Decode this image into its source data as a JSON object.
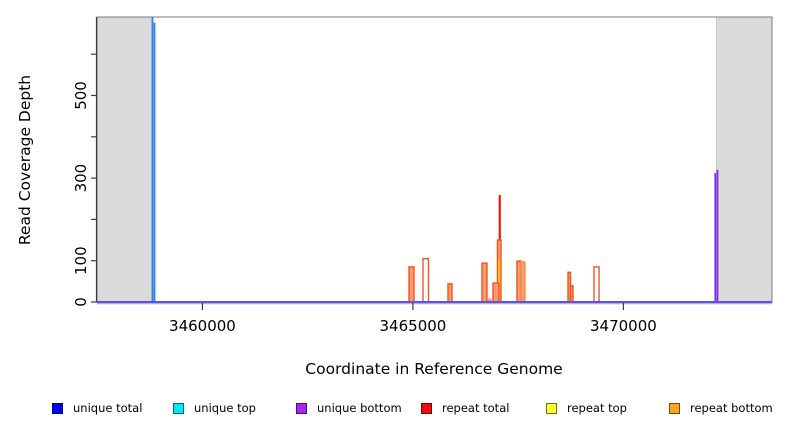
{
  "chart_data": {
    "type": "line",
    "title": "",
    "xlabel": "Coordinate in Reference Genome",
    "ylabel": "Read Coverage Depth",
    "xlim": [
      3457495,
      3473530
    ],
    "ylim": [
      0,
      690
    ],
    "grid": false,
    "x_ticks": [
      {
        "value": 3460000,
        "label": "3460000"
      },
      {
        "value": 3465000,
        "label": "3465000"
      },
      {
        "value": 3470000,
        "label": "3470000"
      }
    ],
    "y_ticks": [
      {
        "value": 0,
        "label": "0"
      },
      {
        "value": 100,
        "label": "100"
      },
      {
        "value": 200,
        "label": ""
      },
      {
        "value": 300,
        "label": "300"
      },
      {
        "value": 400,
        "label": ""
      },
      {
        "value": 500,
        "label": "500"
      },
      {
        "value": 600,
        "label": ""
      }
    ],
    "masked_regions": [
      {
        "x1": 3457495,
        "x2": 3458800
      },
      {
        "x1": 3472209,
        "x2": 3473530
      }
    ],
    "baseline_depth": 0,
    "colors": {
      "mask": "#DADADA",
      "mask_border": "#C6C6C6",
      "frame": "#8F8F8F",
      "axis": "#3C3C3C",
      "baseline": "#5A55DE",
      "baseline_light": "#AB9DF0",
      "blue": "#2F7FE9",
      "purple": "#7F2BE9",
      "red": "#ED1B0A",
      "yellow": "#FFC917",
      "orange": "#F2541D",
      "orange_light": "#F98F3E",
      "salmon": "#F79B72",
      "white": "#FFFFFF"
    },
    "features": [
      {
        "kind": "line",
        "series": "repeat total",
        "x": 3467063,
        "depth": 259,
        "color": "red",
        "w": 2.2
      },
      {
        "kind": "bar",
        "series": "repeat bottom",
        "x1": 3467008,
        "x2": 3467092,
        "depth": 150,
        "stroke": "orange",
        "fill": "salmon"
      },
      {
        "kind": "line",
        "series": "repeat top",
        "x": 3467049,
        "depth": 102,
        "color": "yellow",
        "w": 2.0
      },
      {
        "kind": "line",
        "series": "repeat top",
        "x": 3467531,
        "depth": 101,
        "color": "yellow",
        "w": 2.0
      },
      {
        "kind": "bar",
        "series": "repeat bottom",
        "x1": 3464907,
        "x2": 3465026,
        "depth": 85,
        "stroke": "orange",
        "fill": "salmon"
      },
      {
        "kind": "bar",
        "series": "repeat bottom",
        "x1": 3465239,
        "x2": 3465370,
        "depth": 105,
        "stroke": "orange",
        "fill": "white"
      },
      {
        "kind": "bar",
        "series": "repeat bottom",
        "x1": 3465833,
        "x2": 3465928,
        "depth": 44,
        "stroke": "orange",
        "fill": "salmon"
      },
      {
        "kind": "bar",
        "series": "repeat bottom",
        "x1": 3466640,
        "x2": 3466759,
        "depth": 94,
        "stroke": "orange",
        "fill": "salmon"
      },
      {
        "kind": "bar",
        "series": "repeat bottom",
        "x1": 3466795,
        "x2": 3466854,
        "depth": 7,
        "stroke": "salmon",
        "fill": "salmon"
      },
      {
        "kind": "bar",
        "series": "repeat bottom",
        "x1": 3466902,
        "x2": 3467044,
        "depth": 46,
        "stroke": "orange",
        "fill": "salmon"
      },
      {
        "kind": "bar",
        "series": "repeat bottom",
        "x1": 3467472,
        "x2": 3467567,
        "depth": 99,
        "stroke": "orange",
        "fill": "salmon"
      },
      {
        "kind": "bar",
        "series": "repeat bottom",
        "x1": 3467567,
        "x2": 3467662,
        "depth": 97,
        "stroke": "orange_light",
        "fill": "salmon"
      },
      {
        "kind": "bar",
        "series": "repeat bottom",
        "x1": 3468684,
        "x2": 3468744,
        "depth": 72,
        "stroke": "orange",
        "fill": "salmon"
      },
      {
        "kind": "bar",
        "series": "repeat bottom",
        "x1": 3468744,
        "x2": 3468803,
        "depth": 39,
        "stroke": "orange",
        "fill": "salmon"
      },
      {
        "kind": "bar",
        "series": "repeat bottom",
        "x1": 3469302,
        "x2": 3469421,
        "depth": 85,
        "stroke": "orange",
        "fill": "white"
      },
      {
        "kind": "line",
        "series": "unique total",
        "x": 3458813,
        "depth": 690,
        "color": "blue",
        "w": 1.8
      },
      {
        "kind": "line",
        "series": "unique total",
        "x": 3458861,
        "depth": 676,
        "color": "blue",
        "w": 1.8
      },
      {
        "kind": "line",
        "series": "unique bottom",
        "x": 3472183,
        "depth": 312,
        "color": "purple",
        "w": 1.8
      },
      {
        "kind": "line",
        "series": "unique bottom",
        "x": 3472235,
        "depth": 320,
        "color": "purple",
        "w": 1.8
      }
    ]
  },
  "legend": {
    "items": [
      {
        "label": "unique total",
        "color": "#0000F0"
      },
      {
        "label": "unique top",
        "color": "#00E9F2"
      },
      {
        "label": "unique bottom",
        "color": "#A428F0"
      },
      {
        "label": "repeat total",
        "color": "#F00C0C"
      },
      {
        "label": "repeat top",
        "color": "#FCFC30"
      },
      {
        "label": "repeat bottom",
        "color": "#FFA51C"
      }
    ]
  }
}
